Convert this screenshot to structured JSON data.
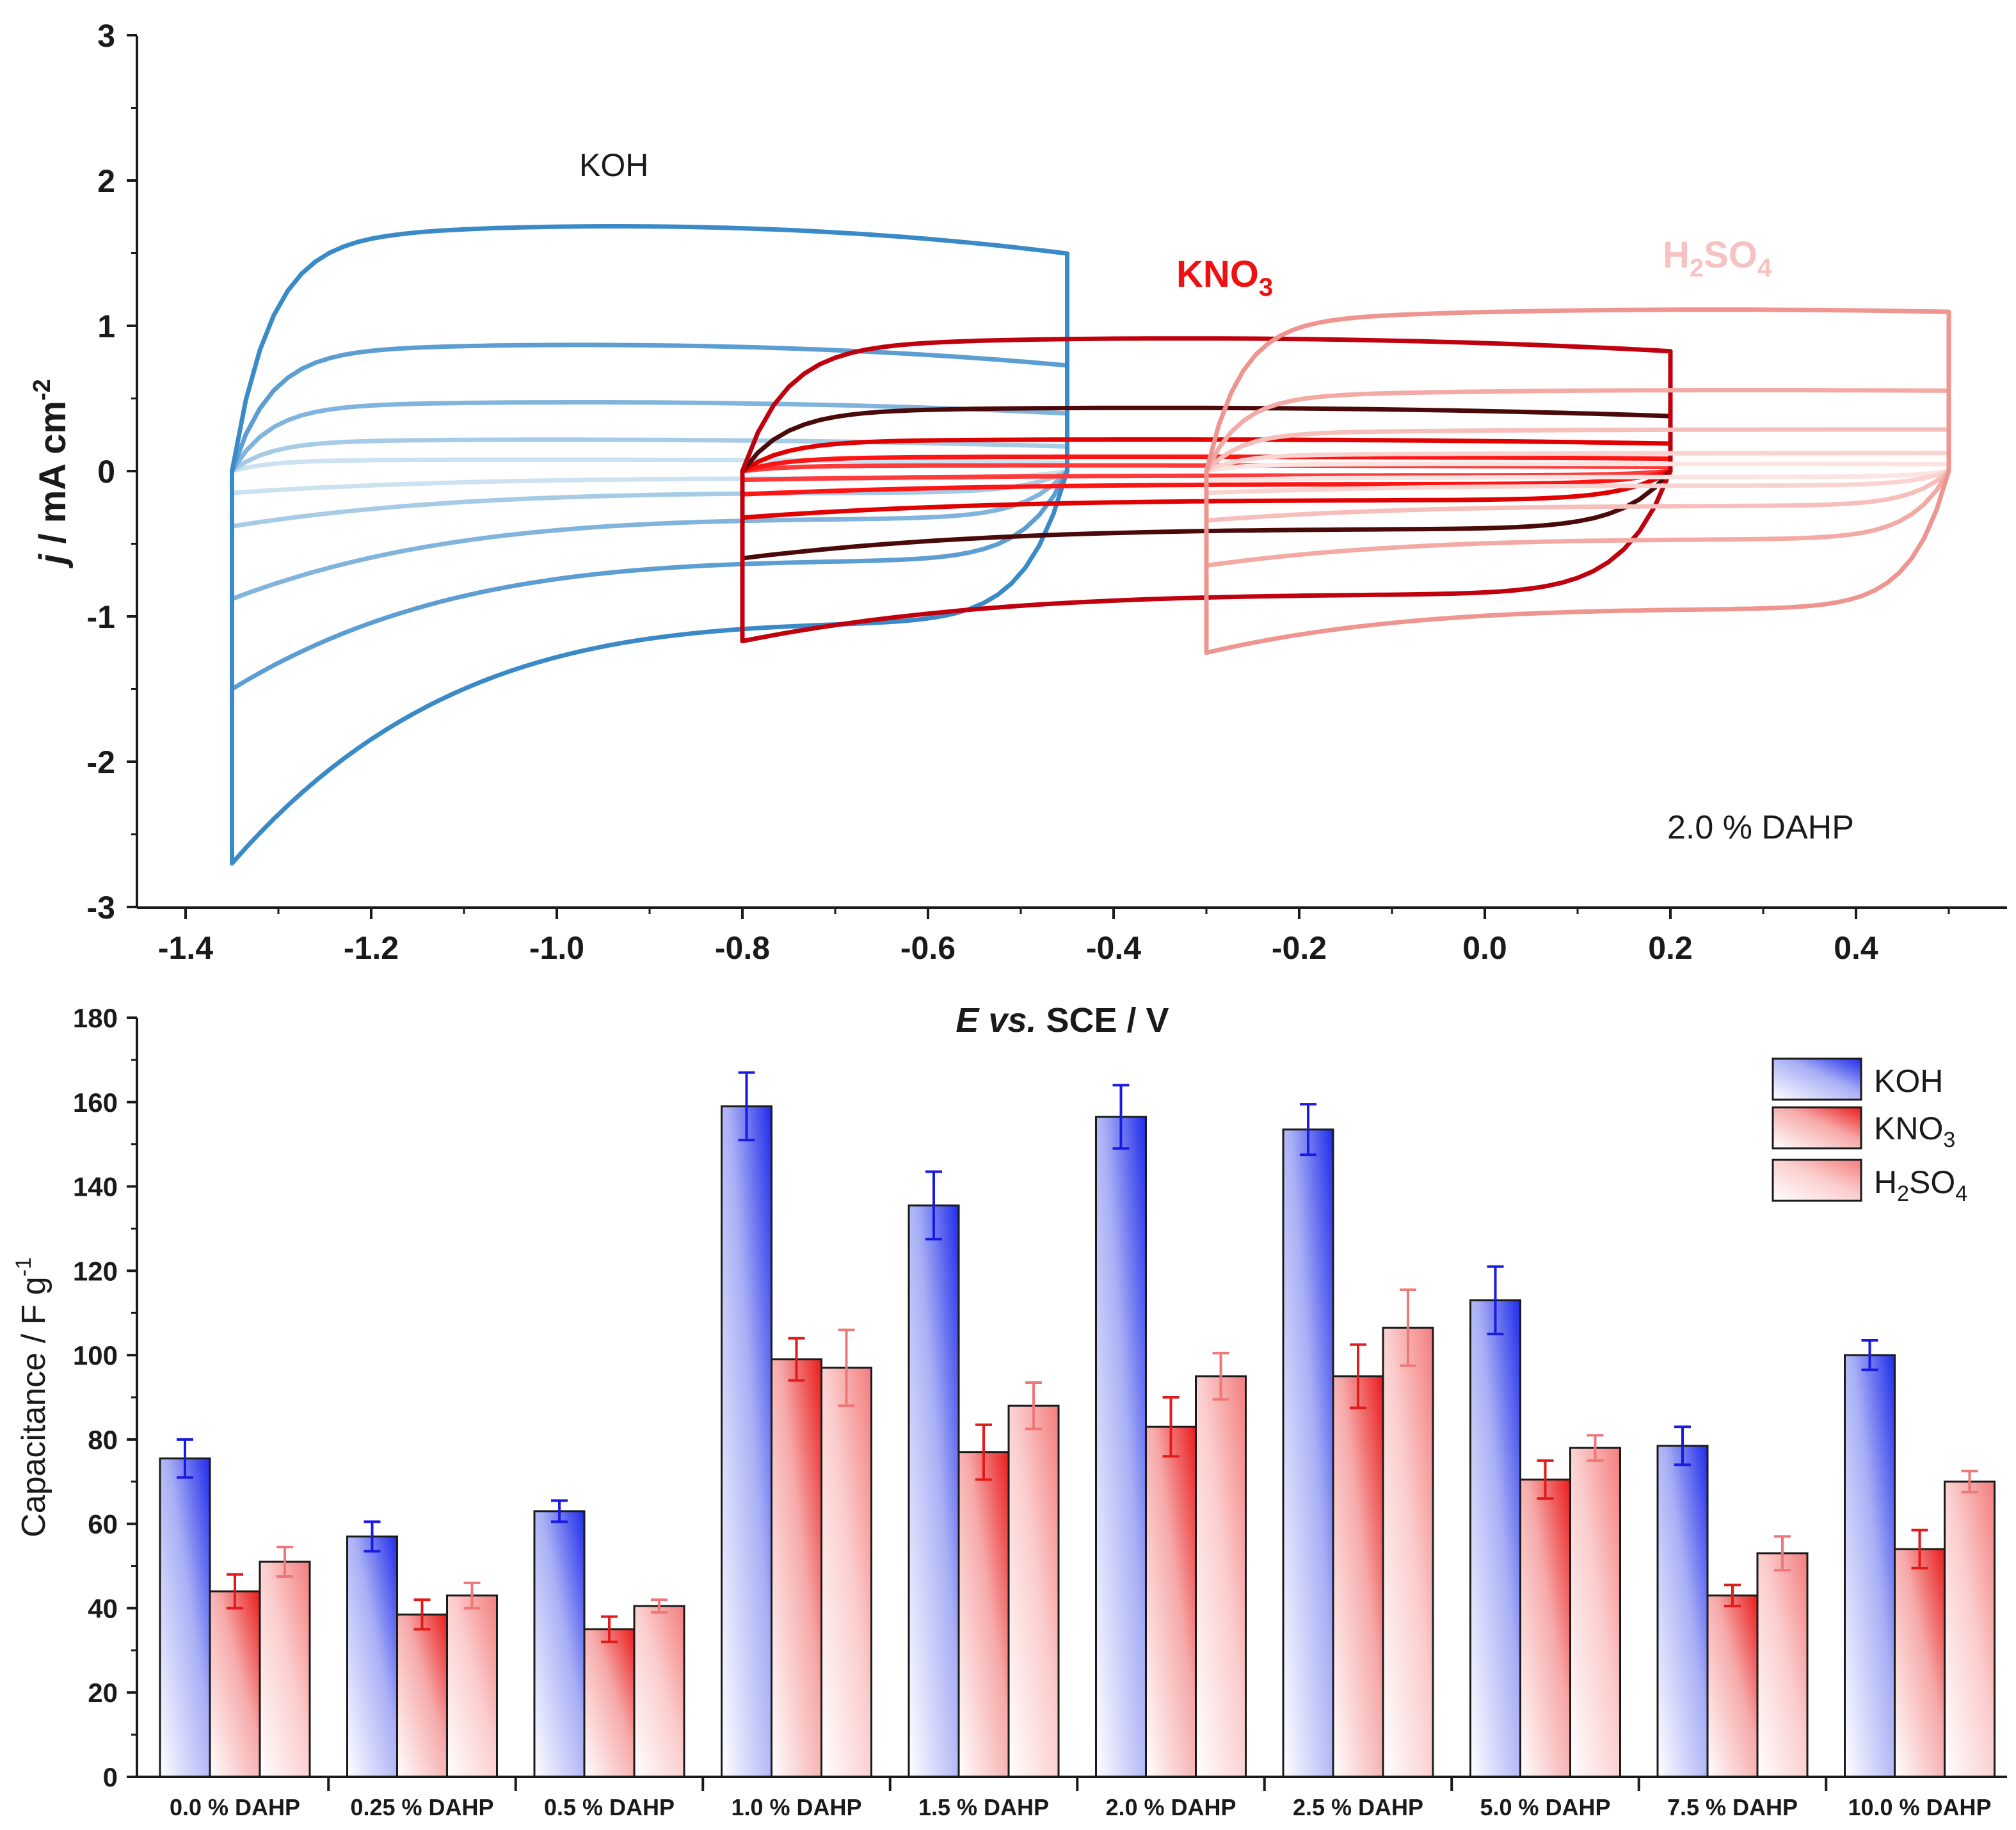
{
  "chart_data": [
    {
      "type": "line",
      "name": "cyclic voltammograms",
      "annotation": "2.0 % DAHP",
      "xlabel": {
        "italic": "E",
        "mid": " vs.",
        "rest": " SCE / V"
      },
      "ylabel": {
        "italic": "j",
        "rest": " / mA cm",
        "sup": "-2"
      },
      "xlim": [
        -1.45,
        0.55
      ],
      "ylim": [
        -3,
        3
      ],
      "xticks": [
        "-1.4",
        "-1.2",
        "-1.0",
        "-0.8",
        "-0.6",
        "-0.4",
        "-0.2",
        "0.0",
        "0.2",
        "0.4"
      ],
      "xtick_values": [
        -1.4,
        -1.2,
        -1.0,
        -0.8,
        -0.6,
        -0.4,
        -0.2,
        0.0,
        0.2,
        0.4
      ],
      "yticks": [
        "3",
        "2",
        "1",
        "0",
        "-1",
        "-2",
        "-3"
      ],
      "ytick_values": [
        3,
        2,
        1,
        0,
        -1,
        -2,
        -3
      ],
      "series": [
        {
          "name": "KOH",
          "label_main": "KOH",
          "label_sub": "",
          "label_color": "#1a1a1a",
          "window": [
            -1.35,
            -0.45
          ],
          "loops": [
            {
              "ia": 1.7,
              "ic": -1.05,
              "ia_end": 1.58,
              "ic_start": -2.7,
              "color": "#3a8ac8"
            },
            {
              "ia": 0.88,
              "ic": -0.62,
              "ia_end": 0.77,
              "ic_start": -1.5,
              "color": "#5c9ed2"
            },
            {
              "ia": 0.48,
              "ic": -0.33,
              "ia_end": 0.42,
              "ic_start": -0.88,
              "color": "#80b4dc"
            },
            {
              "ia": 0.22,
              "ic": -0.15,
              "ia_end": 0.18,
              "ic_start": -0.38,
              "color": "#a6cbe6"
            },
            {
              "ia": 0.08,
              "ic": -0.05,
              "ia_end": 0.06,
              "ic_start": -0.15,
              "color": "#cce2f1"
            }
          ]
        },
        {
          "name": "KNO3",
          "label_main": "KNO",
          "label_sub": "3",
          "label_color": "#ee1111",
          "window": [
            -0.8,
            0.2
          ],
          "loops": [
            {
              "ia": 0.92,
              "ic": -0.85,
              "ia_end": 0.87,
              "ic_start": -1.17,
              "color": "#c0000d"
            },
            {
              "ia": 0.44,
              "ic": -0.4,
              "ia_end": 0.4,
              "ic_start": -0.6,
              "color": "#4a0a0a"
            },
            {
              "ia": 0.22,
              "ic": -0.2,
              "ia_end": 0.2,
              "ic_start": -0.32,
              "color": "#e00000"
            },
            {
              "ia": 0.1,
              "ic": -0.09,
              "ia_end": 0.09,
              "ic_start": -0.16,
              "color": "#ff1414"
            },
            {
              "ia": 0.04,
              "ic": -0.03,
              "ia_end": 0.03,
              "ic_start": -0.06,
              "color": "#ff3a3a"
            }
          ]
        },
        {
          "name": "H2SO4",
          "label_main": "H",
          "label_sub": "2",
          "label_main2": "SO",
          "label_sub2": "4",
          "label_color": "#f7c2c2",
          "window": [
            -0.3,
            0.5
          ],
          "loops": [
            {
              "ia": 1.1,
              "ic": -0.95,
              "ia_end": 1.15,
              "ic_start": -1.25,
              "color": "#ee958f"
            },
            {
              "ia": 0.55,
              "ic": -0.47,
              "ia_end": 0.58,
              "ic_start": -0.65,
              "color": "#f3aaa5"
            },
            {
              "ia": 0.28,
              "ic": -0.24,
              "ia_end": 0.3,
              "ic_start": -0.34,
              "color": "#f6bfbb"
            },
            {
              "ia": 0.12,
              "ic": -0.1,
              "ia_end": 0.13,
              "ic_start": -0.15,
              "color": "#f9d3d0"
            },
            {
              "ia": 0.05,
              "ic": -0.04,
              "ia_end": 0.05,
              "ic_start": -0.06,
              "color": "#fbe4e2"
            }
          ]
        }
      ]
    },
    {
      "type": "bar",
      "name": "specific capacitance",
      "xlabel": "",
      "ylabel": {
        "rest": "Capacitance / F g",
        "sup": "-1"
      },
      "ylim": [
        0,
        180
      ],
      "yticks": [
        "0",
        "20",
        "40",
        "60",
        "80",
        "100",
        "120",
        "140",
        "160",
        "180"
      ],
      "ytick_values": [
        0,
        20,
        40,
        60,
        80,
        100,
        120,
        140,
        160,
        180
      ],
      "categories": [
        "0.0 % DAHP",
        "0.25 % DAHP",
        "0.5 % DAHP",
        "1.0 % DAHP",
        "1.5 % DAHP",
        "2.0 % DAHP",
        "2.5 % DAHP",
        "5.0 % DAHP",
        "7.5 % DAHP",
        "10.0 % DAHP"
      ],
      "legend_position": "top-right",
      "series": [
        {
          "name": "KOH",
          "legend_main": "KOH",
          "legend_sub": "",
          "color": "#1f2bea",
          "error_color": "#1a1ae0",
          "values": [
            75.5,
            57,
            63,
            159,
            135.5,
            156.5,
            153.5,
            113,
            78.5,
            100
          ],
          "errors": [
            4.5,
            3.5,
            2.5,
            8,
            8,
            7.5,
            6,
            8,
            4.5,
            3.5
          ]
        },
        {
          "name": "KNO3",
          "legend_main": "KNO",
          "legend_sub": "3",
          "color": "#ea1b1b",
          "error_color": "#e11b1b",
          "values": [
            44,
            38.5,
            35,
            99,
            77,
            83,
            95,
            70.5,
            43,
            54
          ],
          "errors": [
            4,
            3.5,
            3,
            5,
            6.5,
            7,
            7.5,
            4.5,
            2.5,
            4.5
          ]
        },
        {
          "name": "H2SO4",
          "legend_main": "H",
          "legend_sub": "2",
          "legend_main2": "SO",
          "legend_sub2": "4",
          "color": "#f37d7d",
          "error_color": "#ee7777",
          "values": [
            51,
            43,
            40.5,
            97,
            88,
            95,
            106.5,
            78,
            53,
            70
          ],
          "errors": [
            3.5,
            3,
            1.5,
            9,
            5.5,
            5.5,
            9,
            3,
            4,
            2.5
          ]
        }
      ]
    }
  ]
}
